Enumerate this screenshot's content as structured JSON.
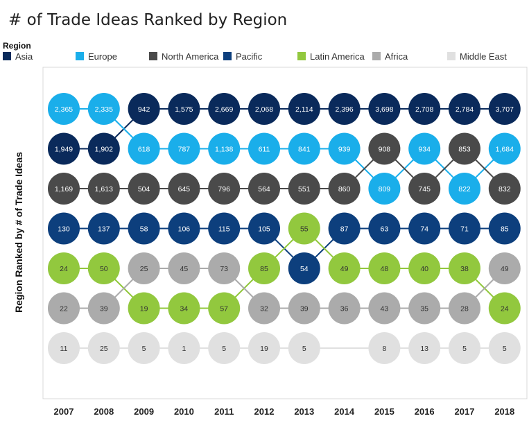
{
  "chart_data": {
    "type": "bump",
    "title": "# of Trade Ideas Ranked by Region",
    "ylabel": "Region Ranked by # of Trade Ideas",
    "legend_title": "Region",
    "legend_position": "top",
    "x": [
      "2007",
      "2008",
      "2009",
      "2010",
      "2011",
      "2012",
      "2013",
      "2014",
      "2015",
      "2016",
      "2017",
      "2018"
    ],
    "series": [
      {
        "name": "Asia",
        "color": "#0a2a5b",
        "text_color": "#ffffff",
        "ranks": [
          2,
          2,
          1,
          1,
          1,
          1,
          1,
          1,
          1,
          1,
          1,
          1
        ],
        "values": [
          1949,
          1902,
          942,
          1575,
          2669,
          2068,
          2114,
          2396,
          3698,
          2708,
          2784,
          3707
        ],
        "labels": [
          "1,949",
          "1,902",
          "942",
          "1,575",
          "2,669",
          "2,068",
          "2,114",
          "2,396",
          "3,698",
          "2,708",
          "2,784",
          "3,707"
        ]
      },
      {
        "name": "Europe",
        "color": "#1aaeea",
        "text_color": "#ffffff",
        "ranks": [
          1,
          1,
          2,
          2,
          2,
          2,
          2,
          2,
          3,
          2,
          3,
          2
        ],
        "values": [
          2365,
          2335,
          618,
          787,
          1138,
          611,
          841,
          939,
          809,
          934,
          822,
          1684
        ],
        "labels": [
          "2,365",
          "2,335",
          "618",
          "787",
          "1,138",
          "611",
          "841",
          "939",
          "809",
          "934",
          "822",
          "1,684"
        ]
      },
      {
        "name": "North America",
        "color": "#4a4a4a",
        "text_color": "#ffffff",
        "ranks": [
          3,
          3,
          3,
          3,
          3,
          3,
          3,
          3,
          2,
          3,
          2,
          3
        ],
        "values": [
          1169,
          1613,
          504,
          645,
          796,
          564,
          551,
          860,
          908,
          745,
          853,
          832
        ],
        "labels": [
          "1,169",
          "1,613",
          "504",
          "645",
          "796",
          "564",
          "551",
          "860",
          "908",
          "745",
          "853",
          "832"
        ]
      },
      {
        "name": "Pacific",
        "color": "#0d3f7d",
        "text_color": "#ffffff",
        "ranks": [
          4,
          4,
          4,
          4,
          4,
          4,
          5,
          4,
          4,
          4,
          4,
          4
        ],
        "values": [
          130,
          137,
          58,
          106,
          115,
          105,
          54,
          87,
          63,
          74,
          71,
          85
        ],
        "labels": [
          "130",
          "137",
          "58",
          "106",
          "115",
          "105",
          "54",
          "87",
          "63",
          "74",
          "71",
          "85"
        ]
      },
      {
        "name": "Latin America",
        "color": "#92c83e",
        "text_color": "#333333",
        "ranks": [
          5,
          5,
          6,
          6,
          6,
          5,
          4,
          5,
          5,
          5,
          5,
          6
        ],
        "values": [
          24,
          50,
          19,
          34,
          57,
          85,
          55,
          49,
          48,
          40,
          38,
          24
        ],
        "labels": [
          "24",
          "50",
          "19",
          "34",
          "57",
          "85",
          "55",
          "49",
          "48",
          "40",
          "38",
          "24"
        ]
      },
      {
        "name": "Africa",
        "color": "#ababab",
        "text_color": "#333333",
        "ranks": [
          6,
          6,
          5,
          5,
          5,
          6,
          6,
          6,
          6,
          6,
          6,
          5
        ],
        "values": [
          22,
          39,
          25,
          45,
          73,
          32,
          39,
          36,
          43,
          35,
          28,
          49
        ],
        "labels": [
          "22",
          "39",
          "25",
          "45",
          "73",
          "32",
          "39",
          "36",
          "43",
          "35",
          "28",
          "49"
        ]
      },
      {
        "name": "Middle East",
        "color": "#e0e0e0",
        "text_color": "#333333",
        "ranks": [
          7,
          7,
          7,
          7,
          7,
          7,
          7,
          null,
          7,
          7,
          7,
          7
        ],
        "values": [
          11,
          25,
          5,
          1,
          5,
          19,
          5,
          null,
          8,
          13,
          5,
          5
        ],
        "labels": [
          "11",
          "25",
          "5",
          "1",
          "5",
          "19",
          "5",
          null,
          "8",
          "13",
          "5",
          "5"
        ]
      }
    ]
  }
}
